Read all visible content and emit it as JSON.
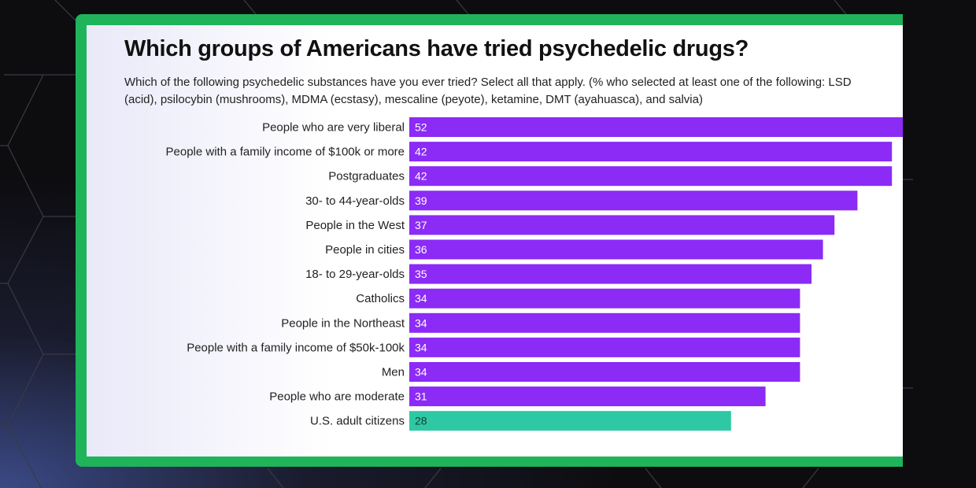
{
  "colors": {
    "bar_group": "#8b2bf5",
    "bar_baseline": "#2ec9a4",
    "frame": "#1fb45a",
    "label_text": "#222222",
    "value_text_light": "#ffffff",
    "value_text_dark": "#1a3a33"
  },
  "chart_data": {
    "type": "bar",
    "orientation": "horizontal",
    "title": "Which groups of Americans have tried psychedelic drugs?",
    "subtitle": "Which of the following psychedelic substances have you ever tried? Select all that apply. (% who selected at least one of the following: LSD (acid), psilocybin (mushrooms), MDMA (ecstasy), mescaline (peyote), ketamine, DMT (ayahuasca), and salvia)",
    "categories": [
      "People who are very liberal",
      "People with a family income of $100k or more",
      "Postgraduates",
      "30- to 44-year-olds",
      "People in the West",
      "People in cities",
      "18- to 29-year-olds",
      "Catholics",
      "People in the Northeast",
      "People with a family income of $50k-100k",
      "Men",
      "People who are moderate",
      "U.S. adult citizens"
    ],
    "values": [
      52,
      42,
      42,
      39,
      37,
      36,
      35,
      34,
      34,
      34,
      34,
      31,
      28
    ],
    "highlight_category": "U.S. adult citizens",
    "xlim": [
      0,
      60
    ],
    "grid": false,
    "legend": "none"
  }
}
